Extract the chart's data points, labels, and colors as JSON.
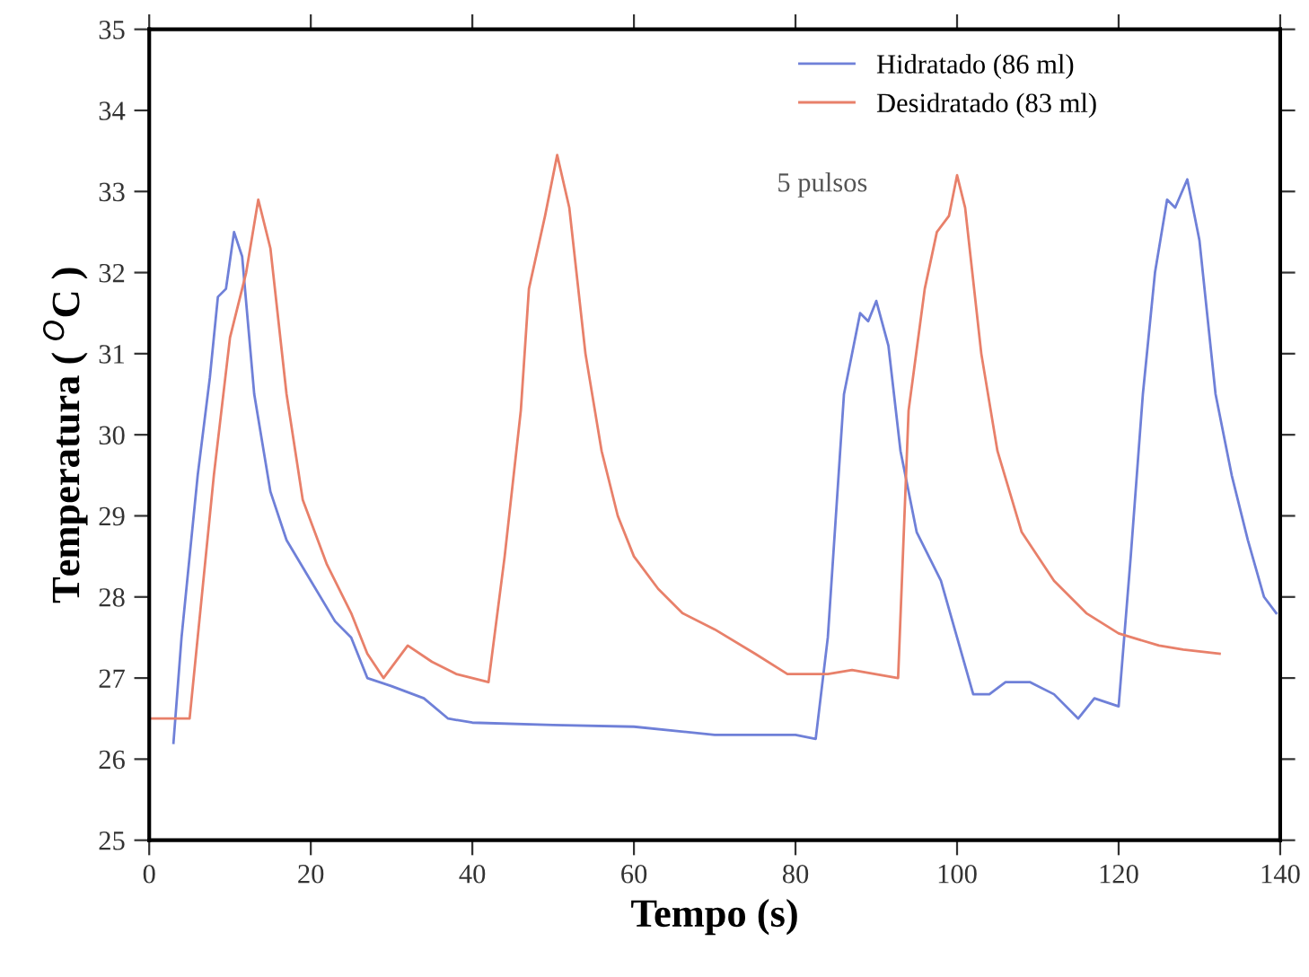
{
  "chart_data": {
    "type": "line",
    "xlabel": "Tempo (s)",
    "ylabel": "Temperatura ( $^{O}$C )",
    "annotations": [
      "5 pulsos"
    ],
    "legend": "top right",
    "grid": false,
    "xlim": [
      0,
      140
    ],
    "ylim": [
      25,
      35
    ],
    "xticks": [
      0,
      20,
      40,
      60,
      80,
      100,
      120,
      140
    ],
    "yticks": [
      25,
      26,
      27,
      28,
      29,
      30,
      31,
      32,
      33,
      34,
      35
    ],
    "series": [
      {
        "name": "Hidratado (86 ml)",
        "color": "#6f80d8",
        "x": [
          3,
          4,
          6,
          7.5,
          8.5,
          9.5,
          10.5,
          11.5,
          13,
          15,
          17,
          20,
          23,
          25,
          27,
          30,
          34,
          37,
          40,
          50,
          60,
          70,
          80,
          82.5,
          84,
          86,
          88,
          89,
          90,
          91.5,
          93,
          95,
          98,
          100,
          102,
          104,
          106,
          109,
          112,
          115,
          117,
          120,
          121.5,
          123,
          124.5,
          126,
          127,
          128.5,
          130,
          132,
          134,
          136,
          138,
          139.5
        ],
        "values": [
          26.2,
          27.5,
          29.5,
          30.7,
          31.7,
          31.8,
          32.5,
          32.2,
          30.5,
          29.3,
          28.7,
          28.2,
          27.7,
          27.5,
          27.0,
          26.9,
          26.75,
          26.5,
          26.45,
          26.42,
          26.4,
          26.3,
          26.3,
          26.25,
          27.5,
          30.5,
          31.5,
          31.4,
          31.65,
          31.1,
          29.8,
          28.8,
          28.2,
          27.5,
          26.8,
          26.8,
          26.95,
          26.95,
          26.8,
          26.5,
          26.75,
          26.65,
          28.5,
          30.5,
          32.0,
          32.9,
          32.8,
          33.15,
          32.4,
          30.5,
          29.5,
          28.7,
          28.0,
          27.8
        ]
      },
      {
        "name": "Desidratado (83 ml)",
        "color": "#e8806a",
        "x": [
          0,
          5,
          8,
          10,
          12,
          13.5,
          15,
          17,
          19,
          22,
          25,
          27,
          29,
          32,
          35,
          38,
          42,
          44,
          46,
          47,
          49,
          50.5,
          52,
          54,
          56,
          58,
          60,
          63,
          66,
          70,
          75,
          79,
          84,
          87,
          92.7,
          94,
          96,
          97.5,
          99,
          100,
          101,
          103,
          105,
          108,
          112,
          116,
          120,
          125,
          128,
          132.5
        ],
        "values": [
          26.5,
          26.5,
          29.5,
          31.2,
          32.0,
          32.9,
          32.3,
          30.5,
          29.2,
          28.4,
          27.8,
          27.3,
          27.0,
          27.4,
          27.2,
          27.05,
          26.95,
          28.5,
          30.3,
          31.8,
          32.7,
          33.45,
          32.8,
          31.0,
          29.8,
          29.0,
          28.5,
          28.1,
          27.8,
          27.6,
          27.3,
          27.05,
          27.05,
          27.1,
          27.0,
          30.3,
          31.8,
          32.5,
          32.7,
          33.2,
          32.8,
          31.0,
          29.8,
          28.8,
          28.2,
          27.8,
          27.55,
          27.4,
          27.35,
          27.3
        ]
      }
    ]
  }
}
